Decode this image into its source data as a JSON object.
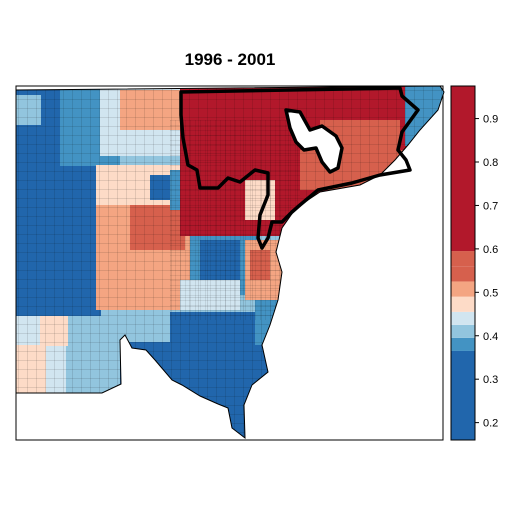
{
  "title": "1996 - 2001",
  "legend": {
    "type": "colorbar",
    "placement": "right",
    "ticks": [
      "0.2",
      "0.3",
      "0.4",
      "0.5",
      "0.6",
      "0.7",
      "0.8",
      "0.9"
    ],
    "bins": [
      {
        "from": 0.16,
        "to": 0.365,
        "color": "#2166ac"
      },
      {
        "from": 0.365,
        "to": 0.395,
        "color": "#4393c3"
      },
      {
        "from": 0.395,
        "to": 0.425,
        "color": "#92c5de"
      },
      {
        "from": 0.425,
        "to": 0.455,
        "color": "#d1e5f0"
      },
      {
        "from": 0.455,
        "to": 0.49,
        "color": "#fddbc7"
      },
      {
        "from": 0.49,
        "to": 0.525,
        "color": "#f4a582"
      },
      {
        "from": 0.525,
        "to": 0.56,
        "color": "#d6604d"
      },
      {
        "from": 0.56,
        "to": 0.595,
        "color": "#d6604d"
      },
      {
        "from": 0.595,
        "to": 0.975,
        "color": "#b2182b"
      }
    ],
    "range": [
      0.16,
      0.975
    ]
  },
  "map": {
    "colors": {
      "very_low": "#2166ac",
      "low": "#4393c3",
      "low_mid": "#92c5de",
      "mid_low": "#d1e5f0",
      "mid_high": "#fddbc7",
      "high_mid": "#f4a582",
      "high": "#d6604d",
      "very_high": "#b2182b",
      "boundary": "#000000"
    },
    "highlighted_region": "city boundary outlined in thick black"
  }
}
